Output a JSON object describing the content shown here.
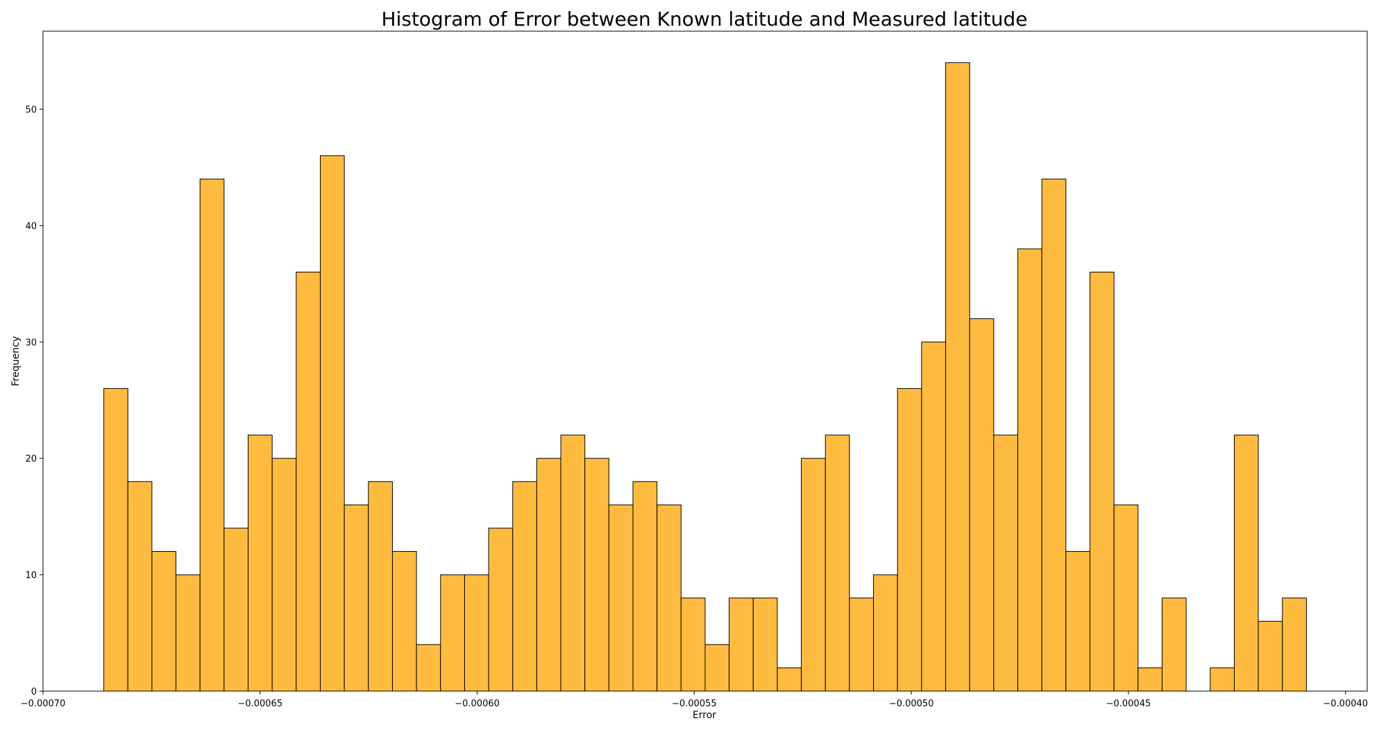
{
  "chart_data": {
    "type": "bar",
    "title": "Histogram of Error between Known latitude and Measured latitude",
    "xlabel": "Error",
    "ylabel": "Frequency",
    "xlim": [
      -0.0007,
      -0.000395
    ],
    "ylim": [
      0,
      56.7
    ],
    "bin_start": -0.000686,
    "bin_width": 5.54e-06,
    "values": [
      26,
      18,
      12,
      10,
      44,
      14,
      22,
      20,
      36,
      46,
      16,
      18,
      12,
      4,
      10,
      10,
      14,
      18,
      20,
      22,
      20,
      16,
      18,
      16,
      8,
      4,
      8,
      8,
      2,
      20,
      22,
      8,
      10,
      26,
      30,
      54,
      32,
      22,
      38,
      44,
      12,
      36,
      16,
      2,
      8,
      0,
      2,
      22,
      6,
      8
    ],
    "x_ticks": [
      {
        "value": -0.0007,
        "label": "−0.00070"
      },
      {
        "value": -0.00065,
        "label": "−0.00065"
      },
      {
        "value": -0.0006,
        "label": "−0.00060"
      },
      {
        "value": -0.00055,
        "label": "−0.00055"
      },
      {
        "value": -0.0005,
        "label": "−0.00050"
      },
      {
        "value": -0.00045,
        "label": "−0.00045"
      },
      {
        "value": -0.0004,
        "label": "−0.00040"
      }
    ],
    "y_ticks": [
      {
        "value": 0,
        "label": "0"
      },
      {
        "value": 10,
        "label": "10"
      },
      {
        "value": 20,
        "label": "20"
      },
      {
        "value": 30,
        "label": "30"
      },
      {
        "value": 40,
        "label": "40"
      },
      {
        "value": 50,
        "label": "50"
      }
    ],
    "bar_color": "#FFBB3F",
    "edge_color": "#000000",
    "grid": false
  }
}
